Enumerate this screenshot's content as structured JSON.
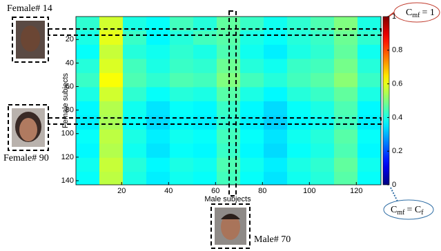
{
  "chart_data": {
    "type": "heatmap",
    "x_label": "Male subjects",
    "y_label": "Female subjects",
    "xbins": [
      0.5,
      10.5,
      20.5,
      30.5,
      40.5,
      50.5,
      60.5,
      70.5,
      80.5,
      90.5,
      100.5,
      110.5,
      120.5,
      130.5
    ],
    "ybins": [
      0.5,
      12.5,
      24.5,
      36.5,
      48.5,
      60.5,
      72.5,
      84.5,
      96.5,
      108.5,
      120.5,
      132.5,
      143.5
    ],
    "values": [
      [
        0.42,
        0.58,
        0.4,
        0.38,
        0.44,
        0.41,
        0.47,
        0.43,
        0.39,
        0.42,
        0.45,
        0.5,
        0.4
      ],
      [
        0.4,
        0.6,
        0.43,
        0.37,
        0.41,
        0.44,
        0.46,
        0.4,
        0.38,
        0.41,
        0.43,
        0.48,
        0.42
      ],
      [
        0.38,
        0.57,
        0.41,
        0.39,
        0.42,
        0.4,
        0.45,
        0.39,
        0.36,
        0.4,
        0.42,
        0.47,
        0.39
      ],
      [
        0.41,
        0.59,
        0.44,
        0.4,
        0.43,
        0.42,
        0.48,
        0.41,
        0.39,
        0.43,
        0.44,
        0.49,
        0.41
      ],
      [
        0.43,
        0.62,
        0.45,
        0.42,
        0.45,
        0.44,
        0.5,
        0.44,
        0.41,
        0.44,
        0.46,
        0.51,
        0.43
      ],
      [
        0.4,
        0.58,
        0.42,
        0.38,
        0.41,
        0.4,
        0.46,
        0.4,
        0.37,
        0.41,
        0.43,
        0.47,
        0.4
      ],
      [
        0.37,
        0.55,
        0.39,
        0.35,
        0.38,
        0.37,
        0.43,
        0.37,
        0.34,
        0.38,
        0.4,
        0.45,
        0.37
      ],
      [
        0.36,
        0.54,
        0.38,
        0.34,
        0.37,
        0.36,
        0.42,
        0.36,
        0.33,
        0.37,
        0.39,
        0.44,
        0.36
      ],
      [
        0.38,
        0.56,
        0.4,
        0.36,
        0.39,
        0.38,
        0.44,
        0.38,
        0.35,
        0.39,
        0.41,
        0.46,
        0.38
      ],
      [
        0.37,
        0.55,
        0.39,
        0.35,
        0.38,
        0.37,
        0.43,
        0.37,
        0.34,
        0.38,
        0.4,
        0.45,
        0.37
      ],
      [
        0.39,
        0.57,
        0.41,
        0.37,
        0.4,
        0.39,
        0.45,
        0.39,
        0.36,
        0.4,
        0.42,
        0.47,
        0.39
      ],
      [
        0.38,
        0.56,
        0.4,
        0.36,
        0.39,
        0.38,
        0.44,
        0.38,
        0.35,
        0.39,
        0.41,
        0.46,
        0.38
      ]
    ],
    "xlim": [
      0.5,
      130.5
    ],
    "ylim": [
      0.5,
      143.5
    ],
    "xticks": [
      20,
      40,
      60,
      80,
      100,
      120
    ],
    "yticks": [
      20,
      40,
      60,
      80,
      100,
      120,
      140
    ],
    "colormap": "jet",
    "colorbar": {
      "lim": [
        0,
        1
      ],
      "ticks": [
        0,
        0.2,
        0.4,
        0.6,
        0.8,
        1
      ]
    },
    "annotations": {
      "female_14": "Female# 14",
      "female_90": "Female# 90",
      "male_70": "Male# 70",
      "cmf_1": {
        "base": "C",
        "sub": "mf",
        "rest": "= 1"
      },
      "cmf_cf": {
        "base": "C",
        "sub": "mf",
        "rest": "= C",
        "sub2": "f"
      }
    }
  }
}
